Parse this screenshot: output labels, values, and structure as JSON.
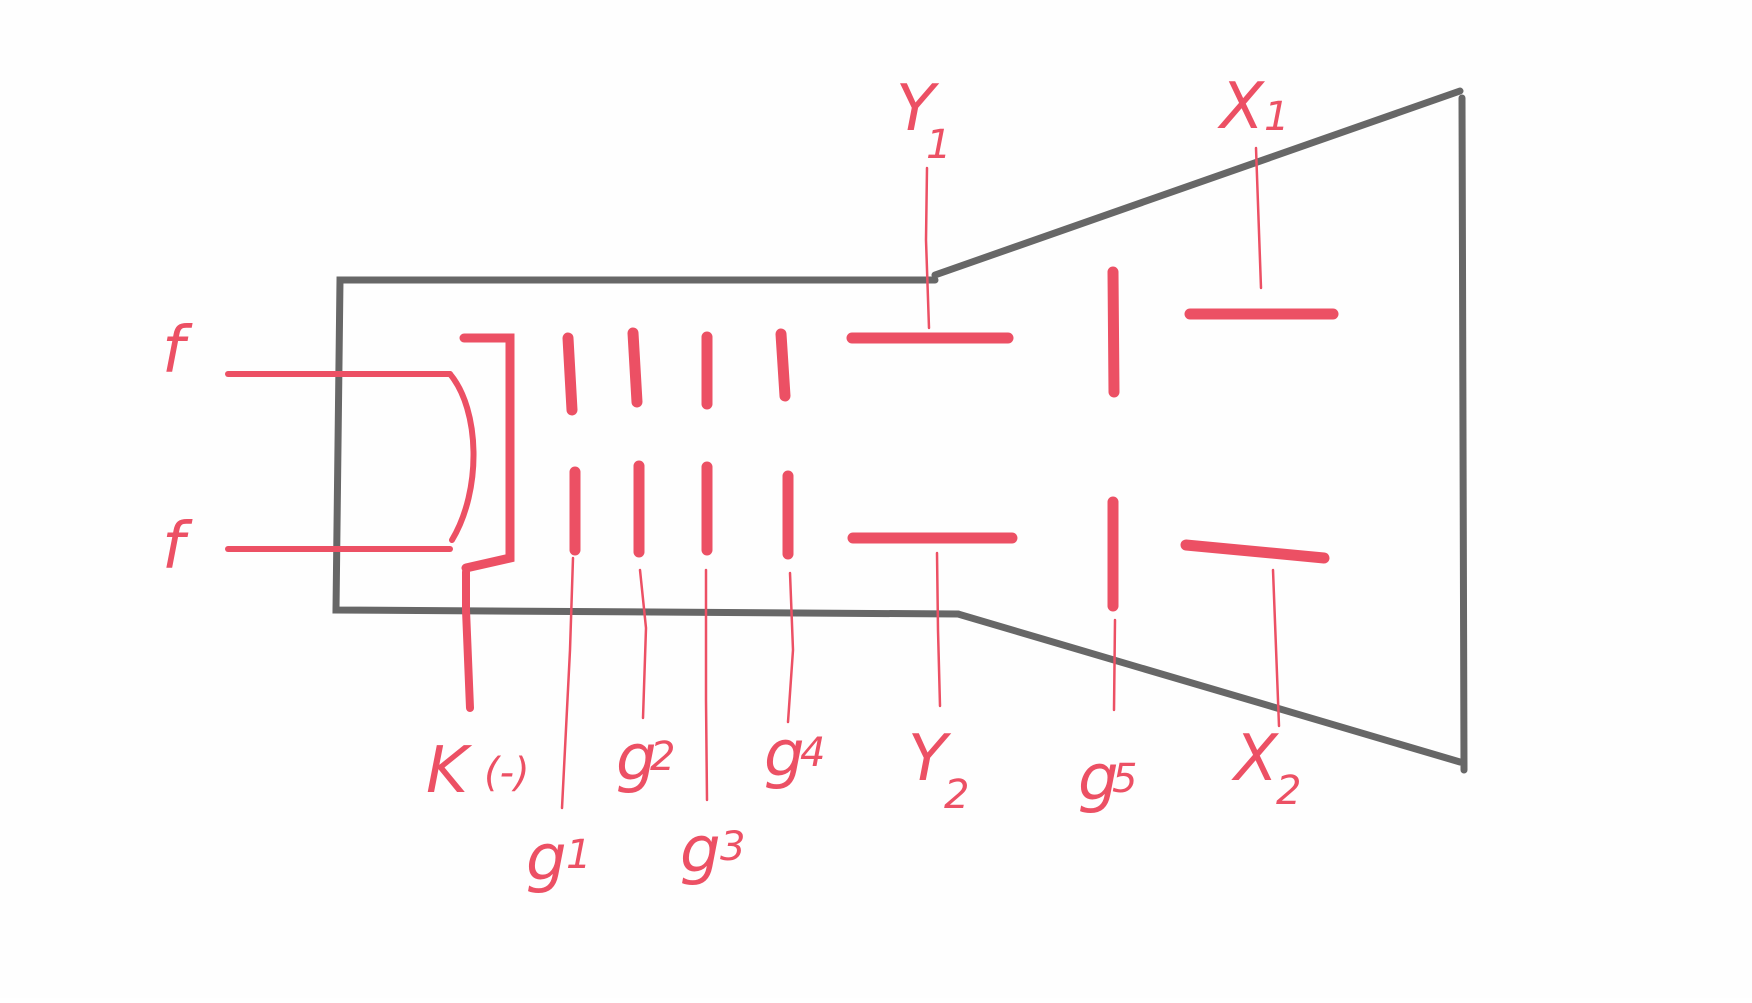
{
  "colors": {
    "tube_outline": "#676767",
    "electrode": "#ec5064",
    "background": "#fefefe"
  },
  "labels": {
    "filament_top": "f",
    "filament_bottom": "f",
    "cathode": "K",
    "cathode_sign": "(-)",
    "g1": "g",
    "g1_sub": "1",
    "g2": "g",
    "g2_sub": "2",
    "g3": "g",
    "g3_sub": "3",
    "g4": "g",
    "g4_sub": "4",
    "g5": "g",
    "g5_sub": "5",
    "y1": "Y",
    "y1_sub": "1",
    "y2": "Y",
    "y2_sub": "2",
    "x1": "X",
    "x1_sub": "1",
    "x2": "X",
    "x2_sub": "2"
  }
}
